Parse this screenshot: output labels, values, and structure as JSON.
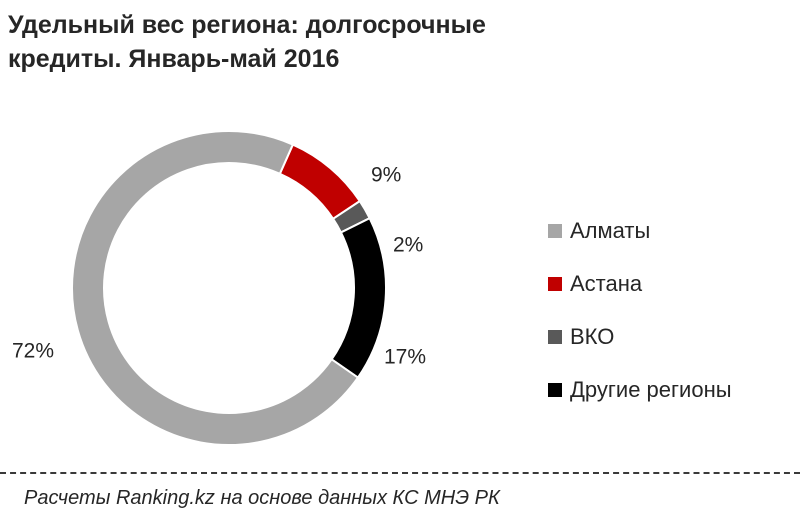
{
  "title": {
    "line1": "Удельный вес региона: долгосрочные",
    "line2": "кредиты. Январь-май  2016"
  },
  "chart_data": {
    "type": "pie",
    "variant": "donut",
    "categories": [
      "Алматы",
      "Астана",
      "ВКО",
      "Другие регионы"
    ],
    "values": [
      72,
      9,
      2,
      17
    ],
    "data_labels": [
      "72%",
      "9%",
      "2%",
      "17%"
    ],
    "colors": [
      "#a6a6a6",
      "#c00000",
      "#595959",
      "#000000"
    ],
    "legend_position": "right"
  },
  "source_note": "Расчеты Ranking.kz на основе данных  КС МНЭ РК"
}
